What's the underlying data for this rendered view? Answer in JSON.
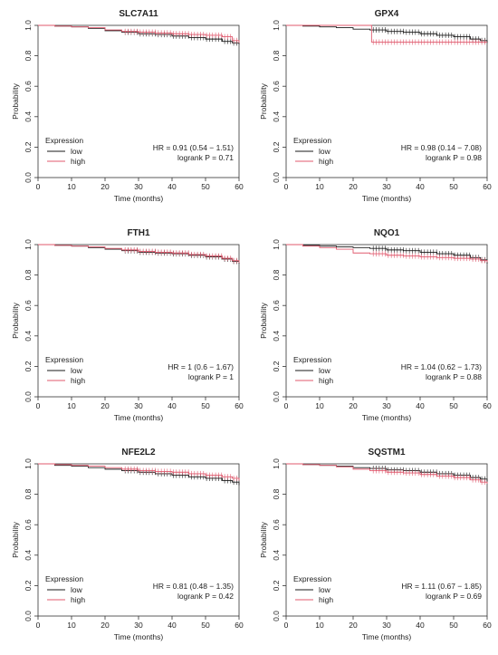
{
  "legend_title": "Expression",
  "colors": {
    "low": "#1a1a1a",
    "high": "#e05a6e"
  },
  "chart_data": [
    {
      "type": "line",
      "title": "SLC7A11",
      "xlabel": "Time (months)",
      "ylabel": "Probability",
      "xlim": [
        0,
        60
      ],
      "ylim": [
        0,
        1
      ],
      "xticks": [
        0,
        10,
        20,
        30,
        40,
        50,
        60
      ],
      "yticks": [
        0.0,
        0.2,
        0.4,
        0.6,
        0.8,
        1.0
      ],
      "legend_position": "bottom-left",
      "series": [
        {
          "name": "low",
          "x": [
            0,
            5,
            10,
            15,
            20,
            25,
            30,
            35,
            40,
            45,
            50,
            55,
            58,
            60
          ],
          "y": [
            1.0,
            0.995,
            0.99,
            0.98,
            0.965,
            0.955,
            0.945,
            0.94,
            0.93,
            0.92,
            0.91,
            0.895,
            0.885,
            0.875
          ]
        },
        {
          "name": "high",
          "x": [
            0,
            5,
            10,
            15,
            20,
            25,
            30,
            35,
            40,
            45,
            50,
            55,
            58,
            60
          ],
          "y": [
            1.0,
            0.995,
            0.99,
            0.985,
            0.97,
            0.96,
            0.955,
            0.95,
            0.945,
            0.94,
            0.935,
            0.925,
            0.9,
            0.885
          ]
        }
      ],
      "stat_hr": "HR = 0.91 (0.54 − 1.51)",
      "stat_p": "logrank P = 0.71"
    },
    {
      "type": "line",
      "title": "GPX4",
      "xlabel": "Time (months)",
      "ylabel": "Probability",
      "xlim": [
        0,
        60
      ],
      "ylim": [
        0,
        1
      ],
      "xticks": [
        0,
        10,
        20,
        30,
        40,
        50,
        60
      ],
      "yticks": [
        0.0,
        0.2,
        0.4,
        0.6,
        0.8,
        1.0
      ],
      "legend_position": "bottom-left",
      "series": [
        {
          "name": "low",
          "x": [
            0,
            5,
            10,
            15,
            20,
            25,
            30,
            35,
            40,
            45,
            50,
            55,
            58,
            60
          ],
          "y": [
            1.0,
            0.995,
            0.99,
            0.985,
            0.975,
            0.97,
            0.96,
            0.955,
            0.945,
            0.935,
            0.925,
            0.91,
            0.9,
            0.885
          ]
        },
        {
          "name": "high",
          "x": [
            0,
            25.5,
            25.5,
            60
          ],
          "y": [
            1.0,
            1.0,
            0.89,
            0.89
          ]
        }
      ],
      "stat_hr": "HR = 0.98 (0.14 − 7.08)",
      "stat_p": "logrank P = 0.98"
    },
    {
      "type": "line",
      "title": "FTH1",
      "xlabel": "Time (months)",
      "ylabel": "Probability",
      "xlim": [
        0,
        60
      ],
      "ylim": [
        0,
        1
      ],
      "xticks": [
        0,
        10,
        20,
        30,
        40,
        50,
        60
      ],
      "yticks": [
        0.0,
        0.2,
        0.4,
        0.6,
        0.8,
        1.0
      ],
      "legend_position": "bottom-left",
      "series": [
        {
          "name": "low",
          "x": [
            0,
            5,
            10,
            15,
            20,
            25,
            30,
            35,
            40,
            45,
            50,
            55,
            58,
            60
          ],
          "y": [
            1.0,
            0.995,
            0.99,
            0.98,
            0.97,
            0.96,
            0.95,
            0.945,
            0.94,
            0.93,
            0.92,
            0.905,
            0.89,
            0.875
          ]
        },
        {
          "name": "high",
          "x": [
            0,
            5,
            10,
            15,
            20,
            25,
            30,
            35,
            40,
            45,
            50,
            55,
            58,
            60
          ],
          "y": [
            1.0,
            0.995,
            0.99,
            0.985,
            0.975,
            0.965,
            0.955,
            0.95,
            0.945,
            0.935,
            0.925,
            0.91,
            0.895,
            0.88
          ]
        }
      ],
      "stat_hr": "HR = 1 (0.6 − 1.67)",
      "stat_p": "logrank P = 1"
    },
    {
      "type": "line",
      "title": "NQO1",
      "xlabel": "Time (months)",
      "ylabel": "Probability",
      "xlim": [
        0,
        60
      ],
      "ylim": [
        0,
        1
      ],
      "xticks": [
        0,
        10,
        20,
        30,
        40,
        50,
        60
      ],
      "yticks": [
        0.0,
        0.2,
        0.4,
        0.6,
        0.8,
        1.0
      ],
      "legend_position": "bottom-left",
      "series": [
        {
          "name": "low",
          "x": [
            0,
            5,
            10,
            15,
            20,
            25,
            30,
            35,
            40,
            45,
            50,
            55,
            58,
            60
          ],
          "y": [
            1.0,
            0.995,
            0.99,
            0.985,
            0.98,
            0.975,
            0.965,
            0.96,
            0.95,
            0.94,
            0.93,
            0.915,
            0.9,
            0.875
          ]
        },
        {
          "name": "high",
          "x": [
            0,
            5,
            10,
            15,
            20,
            25,
            30,
            35,
            40,
            45,
            50,
            55,
            58,
            60
          ],
          "y": [
            1.0,
            0.99,
            0.98,
            0.97,
            0.945,
            0.94,
            0.93,
            0.925,
            0.92,
            0.915,
            0.91,
            0.905,
            0.895,
            0.885
          ]
        }
      ],
      "stat_hr": "HR = 1.04 (0.62 − 1.73)",
      "stat_p": "logrank P = 0.88"
    },
    {
      "type": "line",
      "title": "NFE2L2",
      "xlabel": "Time (months)",
      "ylabel": "Probability",
      "xlim": [
        0,
        60
      ],
      "ylim": [
        0,
        1
      ],
      "xticks": [
        0,
        10,
        20,
        30,
        40,
        50,
        60
      ],
      "yticks": [
        0.0,
        0.2,
        0.4,
        0.6,
        0.8,
        1.0
      ],
      "legend_position": "bottom-left",
      "series": [
        {
          "name": "low",
          "x": [
            0,
            5,
            10,
            15,
            20,
            25,
            30,
            35,
            40,
            45,
            50,
            55,
            58,
            60
          ],
          "y": [
            1.0,
            0.99,
            0.985,
            0.975,
            0.965,
            0.955,
            0.945,
            0.935,
            0.925,
            0.915,
            0.905,
            0.89,
            0.88,
            0.86
          ]
        },
        {
          "name": "high",
          "x": [
            0,
            5,
            10,
            15,
            20,
            25,
            30,
            35,
            40,
            45,
            50,
            55,
            58,
            60
          ],
          "y": [
            1.0,
            0.995,
            0.99,
            0.985,
            0.975,
            0.965,
            0.955,
            0.95,
            0.945,
            0.935,
            0.925,
            0.915,
            0.905,
            0.89
          ]
        }
      ],
      "stat_hr": "HR = 0.81 (0.48 − 1.35)",
      "stat_p": "logrank P = 0.42"
    },
    {
      "type": "line",
      "title": "SQSTM1",
      "xlabel": "Time (months)",
      "ylabel": "Probability",
      "xlim": [
        0,
        60
      ],
      "ylim": [
        0,
        1
      ],
      "xticks": [
        0,
        10,
        20,
        30,
        40,
        50,
        60
      ],
      "yticks": [
        0.0,
        0.2,
        0.4,
        0.6,
        0.8,
        1.0
      ],
      "legend_position": "bottom-left",
      "series": [
        {
          "name": "low",
          "x": [
            0,
            5,
            10,
            15,
            20,
            25,
            30,
            35,
            40,
            45,
            50,
            55,
            58,
            60
          ],
          "y": [
            1.0,
            0.995,
            0.99,
            0.985,
            0.975,
            0.97,
            0.96,
            0.955,
            0.945,
            0.935,
            0.925,
            0.91,
            0.9,
            0.885
          ]
        },
        {
          "name": "high",
          "x": [
            0,
            5,
            10,
            15,
            20,
            25,
            30,
            35,
            40,
            45,
            50,
            55,
            58,
            60
          ],
          "y": [
            1.0,
            0.995,
            0.99,
            0.98,
            0.965,
            0.955,
            0.945,
            0.94,
            0.93,
            0.92,
            0.91,
            0.895,
            0.88,
            0.87
          ]
        }
      ],
      "stat_hr": "HR = 1.11 (0.67 − 1.85)",
      "stat_p": "logrank P = 0.69"
    }
  ]
}
